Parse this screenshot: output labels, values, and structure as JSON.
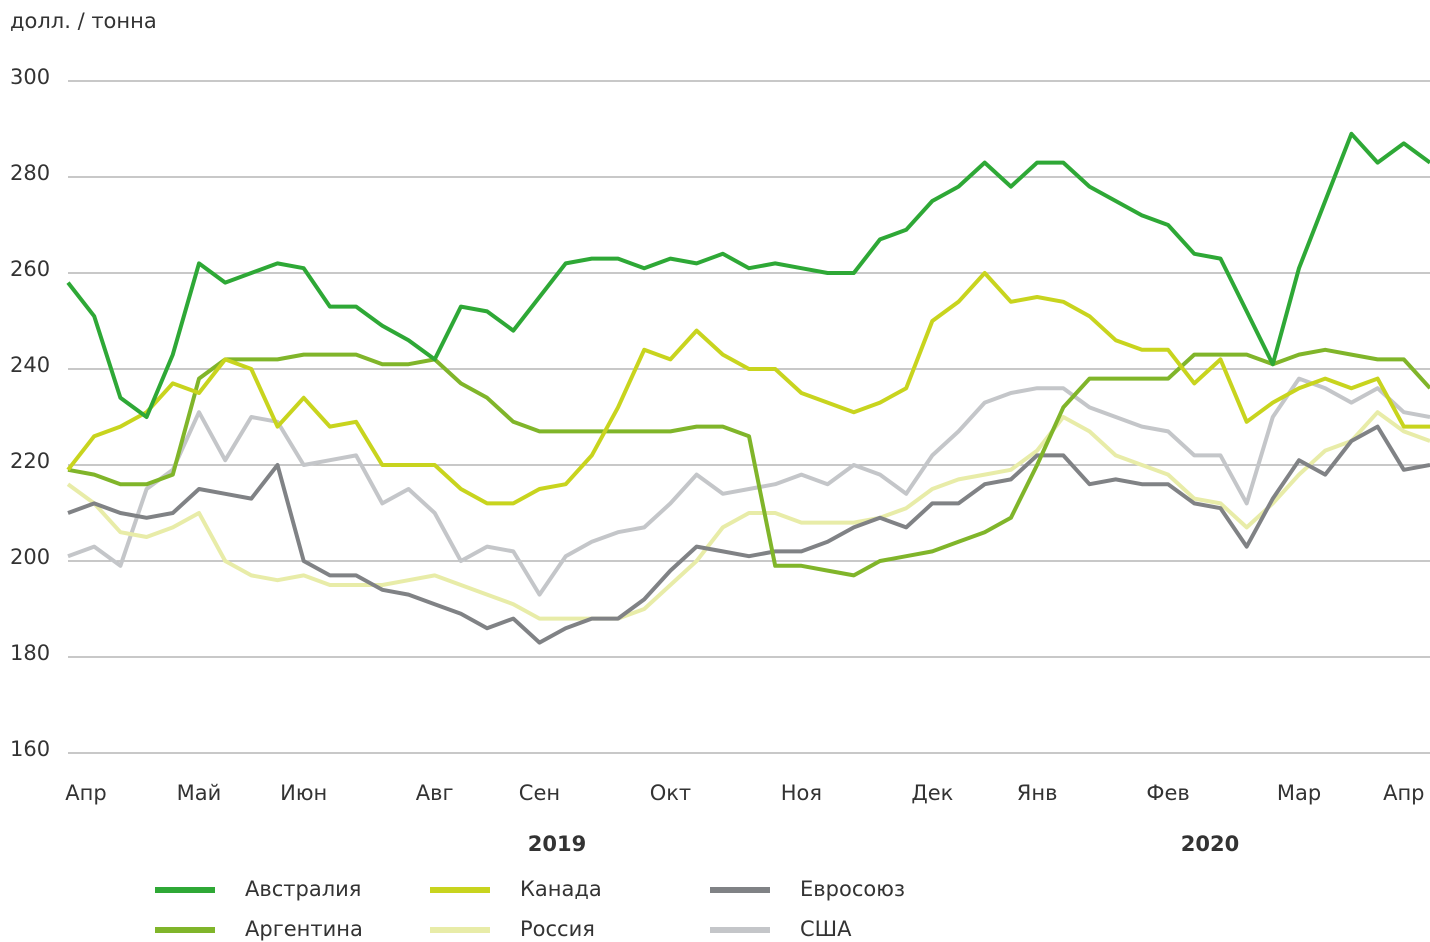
{
  "chart_data": {
    "type": "line",
    "ylabel": "долл. / тонна",
    "ylim": [
      160,
      300
    ],
    "yticks": [
      160,
      180,
      200,
      220,
      240,
      260,
      280,
      300
    ],
    "grid": true,
    "years": [
      "2019",
      "2020"
    ],
    "categories": [
      "Апр",
      null,
      null,
      null,
      null,
      "Май",
      null,
      null,
      null,
      "Июн",
      null,
      null,
      null,
      null,
      "Авг",
      null,
      null,
      null,
      "Сен",
      null,
      null,
      null,
      null,
      "Окт",
      null,
      null,
      null,
      null,
      "Ноя",
      null,
      null,
      null,
      null,
      "Дек",
      null,
      null,
      null,
      "Янв",
      null,
      null,
      null,
      null,
      "Фев",
      null,
      null,
      null,
      null,
      "Мар",
      null,
      null,
      null,
      "Апр",
      null
    ],
    "series": [
      {
        "name": "Австралия",
        "color": "#2ea836",
        "values": [
          258,
          251,
          234,
          230,
          243,
          262,
          258,
          260,
          262,
          261,
          253,
          253,
          249,
          246,
          242,
          253,
          252,
          248,
          255,
          262,
          263,
          263,
          261,
          263,
          262,
          264,
          261,
          262,
          261,
          260,
          260,
          267,
          269,
          275,
          278,
          283,
          278,
          283,
          283,
          278,
          275,
          272,
          270,
          264,
          263,
          252,
          241,
          261,
          275,
          289,
          283,
          287,
          283
        ]
      },
      {
        "name": "Аргентина",
        "color": "#80b52a",
        "values": [
          219,
          218,
          216,
          216,
          218,
          238,
          242,
          242,
          242,
          243,
          243,
          243,
          241,
          241,
          242,
          237,
          234,
          229,
          227,
          227,
          227,
          227,
          227,
          227,
          228,
          228,
          226,
          199,
          199,
          198,
          197,
          200,
          201,
          202,
          204,
          206,
          209,
          220,
          232,
          238,
          238,
          238,
          238,
          243,
          243,
          243,
          241,
          243,
          244,
          243,
          242,
          242,
          236
        ]
      },
      {
        "name": "Канада",
        "color": "#c8d41e",
        "values": [
          219,
          226,
          228,
          231,
          237,
          235,
          242,
          240,
          228,
          234,
          228,
          229,
          220,
          220,
          220,
          215,
          212,
          212,
          215,
          216,
          222,
          232,
          244,
          242,
          248,
          243,
          240,
          240,
          235,
          233,
          231,
          233,
          236,
          250,
          254,
          260,
          254,
          255,
          254,
          251,
          246,
          244,
          244,
          237,
          242,
          229,
          233,
          236,
          238,
          236,
          238,
          228,
          228
        ]
      },
      {
        "name": "Россия",
        "color": "#e8eca8",
        "values": [
          216,
          212,
          206,
          205,
          207,
          210,
          200,
          197,
          196,
          197,
          195,
          195,
          195,
          196,
          197,
          195,
          193,
          191,
          188,
          188,
          188,
          188,
          190,
          195,
          200,
          207,
          210,
          210,
          208,
          208,
          208,
          209,
          211,
          215,
          217,
          218,
          219,
          223,
          230,
          227,
          222,
          220,
          218,
          213,
          212,
          207,
          212,
          218,
          223,
          225,
          231,
          227,
          225
        ]
      },
      {
        "name": "Евросоюз",
        "color": "#808285",
        "values": [
          210,
          212,
          210,
          209,
          210,
          215,
          214,
          213,
          220,
          200,
          197,
          197,
          194,
          193,
          191,
          189,
          186,
          188,
          183,
          186,
          188,
          188,
          192,
          198,
          203,
          202,
          201,
          202,
          202,
          204,
          207,
          209,
          207,
          212,
          212,
          216,
          217,
          222,
          222,
          216,
          217,
          216,
          216,
          212,
          211,
          203,
          213,
          221,
          218,
          225,
          228,
          219,
          220
        ]
      },
      {
        "name": "США",
        "color": "#c4c6c9",
        "values": [
          201,
          203,
          199,
          215,
          219,
          231,
          221,
          230,
          229,
          220,
          221,
          222,
          212,
          215,
          210,
          200,
          203,
          202,
          193,
          201,
          204,
          206,
          207,
          212,
          218,
          214,
          215,
          216,
          218,
          216,
          220,
          218,
          214,
          222,
          227,
          233,
          235,
          236,
          236,
          232,
          230,
          228,
          227,
          222,
          222,
          212,
          230,
          238,
          236,
          233,
          236,
          231,
          230
        ]
      }
    ]
  }
}
